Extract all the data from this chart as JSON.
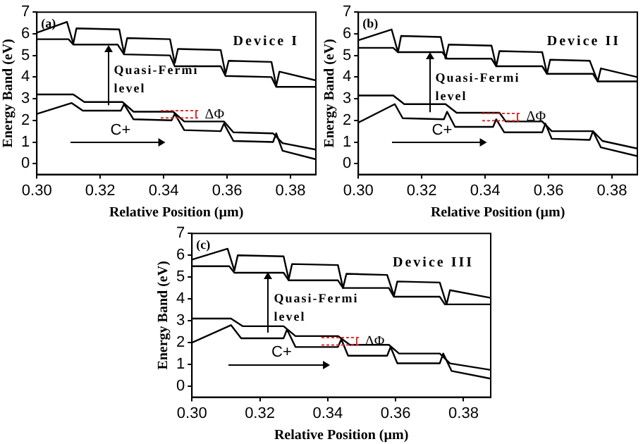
{
  "chart_data": [
    {
      "type": "line",
      "xlabel": "Relative Position (µm)",
      "ylabel": "Energy Band (eV)",
      "xlim": [
        0.3,
        0.388
      ],
      "ylim": [
        -0.5,
        7
      ],
      "xticks": [
        {
          "value": 0.3,
          "label": "0.30"
        },
        {
          "value": 0.32,
          "label": "0.32"
        },
        {
          "value": 0.34,
          "label": "0.34"
        },
        {
          "value": 0.36,
          "label": "0.36"
        },
        {
          "value": 0.38,
          "label": "0.38"
        }
      ],
      "yticks": [
        0,
        1,
        2,
        3,
        4,
        5,
        6,
        7
      ],
      "grid": false,
      "legend": false,
      "marker": "none",
      "line_style": "solid",
      "annotations": [
        "(a)",
        "Device I",
        "C+",
        {
          "text": "Quasi-Fermi level",
          "x": 0.3225,
          "y": 5.5
        },
        {
          "text": "ΔΦ",
          "x": 0.353,
          "y": 2.25
        }
      ],
      "series": [
        {
          "color": "#000000",
          "x": [
            0.3,
            0.3095,
            0.3115,
            0.3125,
            0.326,
            0.3275,
            0.3285,
            0.342,
            0.3435,
            0.3445,
            0.358,
            0.3595,
            0.3605,
            0.374,
            0.3755,
            0.3765,
            0.388
          ],
          "values": [
            6.05,
            6.55,
            5.55,
            6.25,
            6.2,
            5.1,
            5.8,
            5.75,
            4.65,
            5.3,
            5.25,
            4.15,
            4.75,
            4.7,
            3.6,
            4.25,
            3.85
          ]
        },
        {
          "color": "#000000",
          "x": [
            0.3,
            0.31,
            0.3115,
            0.3255,
            0.3275,
            0.342,
            0.3435,
            0.358,
            0.3595,
            0.374,
            0.3755,
            0.388
          ],
          "values": [
            5.75,
            5.75,
            5.5,
            5.5,
            5.05,
            5.0,
            4.5,
            4.5,
            4.05,
            4.0,
            3.55,
            3.55
          ]
        },
        {
          "color": "#000000",
          "x": [
            0.3,
            0.3115,
            0.315,
            0.327,
            0.3305,
            0.343,
            0.3465,
            0.359,
            0.362,
            0.3745,
            0.3775,
            0.388
          ],
          "values": [
            3.2,
            3.2,
            2.85,
            2.85,
            2.4,
            2.4,
            1.95,
            1.95,
            1.45,
            1.4,
            0.95,
            0.65
          ]
        },
        {
          "color": "#000000",
          "x": [
            0.3,
            0.311,
            0.3145,
            0.3265,
            0.3275,
            0.3305,
            0.3425,
            0.3435,
            0.3465,
            0.358,
            0.359,
            0.362,
            0.3745,
            0.3755,
            0.3775,
            0.388
          ],
          "values": [
            2.3,
            2.8,
            2.45,
            2.45,
            2.75,
            2.05,
            2.0,
            2.3,
            1.55,
            1.5,
            1.85,
            1.05,
            1.0,
            1.4,
            0.6,
            0.2
          ]
        }
      ]
    },
    {
      "type": "line",
      "xlabel": "Relative Position (µm)",
      "ylabel": "Energy Band (eV)",
      "xlim": [
        0.3,
        0.388
      ],
      "ylim": [
        -0.5,
        7
      ],
      "xticks": [
        {
          "value": 0.3,
          "label": "0.30"
        },
        {
          "value": 0.32,
          "label": "0.32"
        },
        {
          "value": 0.34,
          "label": "0.34"
        },
        {
          "value": 0.36,
          "label": "0.36"
        },
        {
          "value": 0.38,
          "label": "0.38"
        }
      ],
      "yticks": [
        0,
        1,
        2,
        3,
        4,
        5,
        6,
        7
      ],
      "grid": false,
      "legend": false,
      "marker": "none",
      "line_style": "solid",
      "annotations": [
        "(b)",
        "Device II",
        "C+",
        {
          "text": "Quasi-Fermi level",
          "x": 0.3225,
          "y": 5.15
        },
        {
          "text": "ΔΦ",
          "x": 0.353,
          "y": 2.15
        }
      ],
      "series": [
        {
          "color": "#000000",
          "x": [
            0.3,
            0.3105,
            0.3125,
            0.3135,
            0.326,
            0.3275,
            0.3285,
            0.342,
            0.3435,
            0.3445,
            0.358,
            0.3595,
            0.3605,
            0.373,
            0.3755,
            0.3765,
            0.388
          ],
          "values": [
            5.7,
            6.2,
            5.15,
            5.9,
            5.85,
            4.85,
            5.5,
            5.45,
            4.5,
            5.2,
            5.15,
            4.15,
            4.8,
            4.75,
            3.8,
            4.4,
            4.0
          ]
        },
        {
          "color": "#000000",
          "x": [
            0.3,
            0.311,
            0.3125,
            0.3265,
            0.328,
            0.342,
            0.3435,
            0.358,
            0.3595,
            0.374,
            0.3755,
            0.388
          ],
          "values": [
            5.35,
            5.35,
            5.15,
            5.15,
            4.85,
            4.85,
            4.5,
            4.5,
            4.15,
            4.15,
            3.8,
            3.8
          ]
        },
        {
          "color": "#000000",
          "x": [
            0.3,
            0.311,
            0.3145,
            0.3275,
            0.331,
            0.3445,
            0.3465,
            0.358,
            0.361,
            0.374,
            0.377,
            0.388
          ],
          "values": [
            3.15,
            3.15,
            2.75,
            2.75,
            2.35,
            2.35,
            1.95,
            1.95,
            1.5,
            1.5,
            1.05,
            0.7
          ]
        },
        {
          "color": "#000000",
          "x": [
            0.3,
            0.3115,
            0.314,
            0.327,
            0.328,
            0.3305,
            0.3425,
            0.3435,
            0.346,
            0.358,
            0.359,
            0.361,
            0.373,
            0.374,
            0.3765,
            0.388
          ],
          "values": [
            1.9,
            2.75,
            2.1,
            2.05,
            2.4,
            1.7,
            1.7,
            2.05,
            1.45,
            1.45,
            1.85,
            1.15,
            1.1,
            1.5,
            0.75,
            0.35
          ]
        }
      ]
    },
    {
      "type": "line",
      "xlabel": "Relative Position (µm)",
      "ylabel": "Energy Band (eV)",
      "xlim": [
        0.3,
        0.388
      ],
      "ylim": [
        -0.5,
        7
      ],
      "xticks": [
        {
          "value": 0.3,
          "label": "0.30"
        },
        {
          "value": 0.32,
          "label": "0.32"
        },
        {
          "value": 0.34,
          "label": "0.34"
        },
        {
          "value": 0.36,
          "label": "0.36"
        },
        {
          "value": 0.38,
          "label": "0.38"
        }
      ],
      "yticks": [
        0,
        1,
        2,
        3,
        4,
        5,
        6,
        7
      ],
      "grid": false,
      "legend": false,
      "marker": "none",
      "line_style": "solid",
      "annotations": [
        "(c)",
        "Device III",
        "C+",
        {
          "text": "Quasi-Fermi level",
          "x": 0.3225,
          "y": 5.2
        },
        {
          "text": "ΔΦ",
          "x": 0.351,
          "y": 2.05
        }
      ],
      "series": [
        {
          "color": "#000000",
          "x": [
            0.3,
            0.3105,
            0.3125,
            0.3135,
            0.327,
            0.3285,
            0.3295,
            0.343,
            0.3445,
            0.3455,
            0.3575,
            0.3595,
            0.3605,
            0.373,
            0.375,
            0.376,
            0.388
          ],
          "values": [
            5.8,
            6.3,
            5.3,
            6.0,
            5.95,
            4.9,
            5.6,
            5.55,
            4.5,
            5.15,
            5.1,
            4.15,
            4.8,
            4.75,
            3.75,
            4.4,
            4.05
          ]
        },
        {
          "color": "#000000",
          "x": [
            0.3,
            0.311,
            0.3125,
            0.327,
            0.3285,
            0.343,
            0.3445,
            0.358,
            0.3595,
            0.373,
            0.3745,
            0.388
          ],
          "values": [
            5.5,
            5.5,
            5.2,
            5.2,
            4.85,
            4.85,
            4.5,
            4.5,
            4.1,
            4.1,
            3.75,
            3.75
          ]
        },
        {
          "color": "#000000",
          "x": [
            0.3,
            0.3115,
            0.315,
            0.327,
            0.3305,
            0.343,
            0.3465,
            0.358,
            0.361,
            0.373,
            0.376,
            0.388
          ],
          "values": [
            3.1,
            3.1,
            2.75,
            2.75,
            2.3,
            2.3,
            1.9,
            1.9,
            1.5,
            1.5,
            1.05,
            0.75
          ]
        },
        {
          "color": "#000000",
          "x": [
            0.3,
            0.3115,
            0.3145,
            0.327,
            0.328,
            0.3305,
            0.343,
            0.344,
            0.346,
            0.3575,
            0.3585,
            0.3605,
            0.373,
            0.374,
            0.3765,
            0.388
          ],
          "values": [
            2.0,
            2.8,
            2.2,
            2.2,
            2.6,
            1.8,
            1.8,
            2.15,
            1.4,
            1.4,
            1.8,
            1.05,
            1.05,
            1.5,
            0.7,
            0.35
          ]
        }
      ]
    }
  ]
}
